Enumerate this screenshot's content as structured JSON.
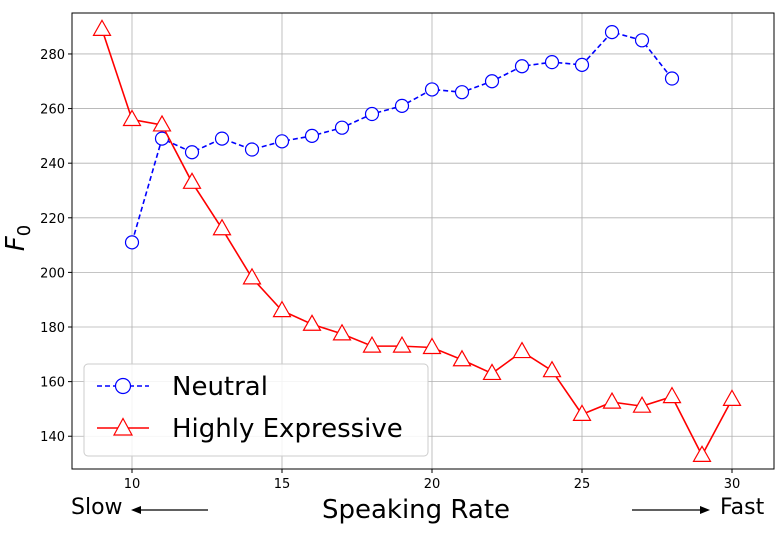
{
  "chart_data": {
    "type": "line",
    "xlabel": "Speaking Rate",
    "ylabel_main": "F",
    "ylabel_sub": "0",
    "xlim": [
      8,
      31.4
    ],
    "ylim": [
      128,
      295
    ],
    "xticks": [
      10,
      15,
      20,
      25,
      30
    ],
    "yticks": [
      140,
      160,
      180,
      200,
      220,
      240,
      260,
      280
    ],
    "grid": true,
    "legend_position": "lower-left",
    "left_label": "Slow",
    "right_label": "Fast",
    "series": [
      {
        "name": "Neutral",
        "color": "#0000ff",
        "line_style": "dashed",
        "marker": "circle",
        "x": [
          10,
          11,
          12,
          13,
          14,
          15,
          16,
          17,
          18,
          19,
          20,
          21,
          22,
          23,
          24,
          25,
          26,
          27,
          28
        ],
        "y": [
          211,
          249,
          244,
          249,
          245,
          248,
          250,
          253,
          258,
          261,
          267,
          266,
          270,
          275.5,
          277,
          276,
          288,
          285,
          271
        ]
      },
      {
        "name": "Highly Expressive",
        "color": "#ff0000",
        "line_style": "solid",
        "marker": "triangle",
        "x": [
          9,
          10,
          11,
          12,
          13,
          14,
          15,
          16,
          17,
          18,
          19,
          20,
          21,
          22,
          23,
          24,
          25,
          26,
          27,
          28,
          29,
          30
        ],
        "y": [
          289,
          256,
          254,
          233,
          216,
          198,
          186,
          181,
          177.5,
          173,
          173,
          172.5,
          168,
          163,
          171,
          164,
          148,
          152.5,
          151,
          154.5,
          133,
          153.5
        ]
      }
    ]
  }
}
